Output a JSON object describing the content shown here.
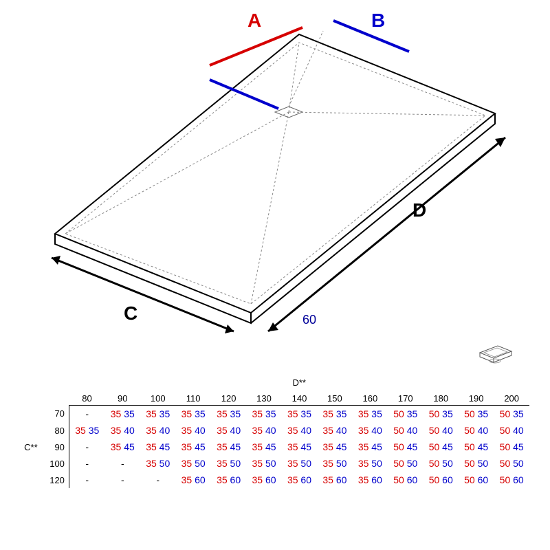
{
  "diagram": {
    "labels": {
      "A": "A",
      "B": "B",
      "C": "C",
      "D": "D",
      "sixty": "60"
    },
    "colors": {
      "red": "#d60000",
      "blue": "#0000cc",
      "outline": "#000000",
      "dotted": "#888888",
      "bg": "#ffffff"
    },
    "label_fontsize_main": 28,
    "label_fontsize_dim": 18
  },
  "table": {
    "d_header": "D**",
    "c_header": "C**",
    "d_values": [
      "80",
      "90",
      "100",
      "110",
      "120",
      "130",
      "140",
      "150",
      "160",
      "170",
      "180",
      "190",
      "200"
    ],
    "c_values": [
      "70",
      "80",
      "90",
      "100",
      "120"
    ],
    "rows": [
      [
        null,
        [
          "35",
          "35"
        ],
        [
          "35",
          "35"
        ],
        [
          "35",
          "35"
        ],
        [
          "35",
          "35"
        ],
        [
          "35",
          "35"
        ],
        [
          "35",
          "35"
        ],
        [
          "35",
          "35"
        ],
        [
          "35",
          "35"
        ],
        [
          "50",
          "35"
        ],
        [
          "50",
          "35"
        ],
        [
          "50",
          "35"
        ],
        [
          "50",
          "35"
        ]
      ],
      [
        [
          "35",
          "35"
        ],
        [
          "35",
          "40"
        ],
        [
          "35",
          "40"
        ],
        [
          "35",
          "40"
        ],
        [
          "35",
          "40"
        ],
        [
          "35",
          "40"
        ],
        [
          "35",
          "40"
        ],
        [
          "35",
          "40"
        ],
        [
          "35",
          "40"
        ],
        [
          "50",
          "40"
        ],
        [
          "50",
          "40"
        ],
        [
          "50",
          "40"
        ],
        [
          "50",
          "40"
        ]
      ],
      [
        null,
        [
          "35",
          "45"
        ],
        [
          "35",
          "45"
        ],
        [
          "35",
          "45"
        ],
        [
          "35",
          "45"
        ],
        [
          "35",
          "45"
        ],
        [
          "35",
          "45"
        ],
        [
          "35",
          "45"
        ],
        [
          "35",
          "45"
        ],
        [
          "50",
          "45"
        ],
        [
          "50",
          "45"
        ],
        [
          "50",
          "45"
        ],
        [
          "50",
          "45"
        ]
      ],
      [
        null,
        null,
        [
          "35",
          "50"
        ],
        [
          "35",
          "50"
        ],
        [
          "35",
          "50"
        ],
        [
          "35",
          "50"
        ],
        [
          "35",
          "50"
        ],
        [
          "35",
          "50"
        ],
        [
          "35",
          "50"
        ],
        [
          "50",
          "50"
        ],
        [
          "50",
          "50"
        ],
        [
          "50",
          "50"
        ],
        [
          "50",
          "50"
        ]
      ],
      [
        null,
        null,
        null,
        [
          "35",
          "60"
        ],
        [
          "35",
          "60"
        ],
        [
          "35",
          "60"
        ],
        [
          "35",
          "60"
        ],
        [
          "35",
          "60"
        ],
        [
          "35",
          "60"
        ],
        [
          "50",
          "60"
        ],
        [
          "50",
          "60"
        ],
        [
          "50",
          "60"
        ],
        [
          "50",
          "60"
        ]
      ]
    ],
    "colors": {
      "red": "#d60000",
      "blue": "#0000cc",
      "border": "#000000"
    },
    "fontsize": 14
  }
}
